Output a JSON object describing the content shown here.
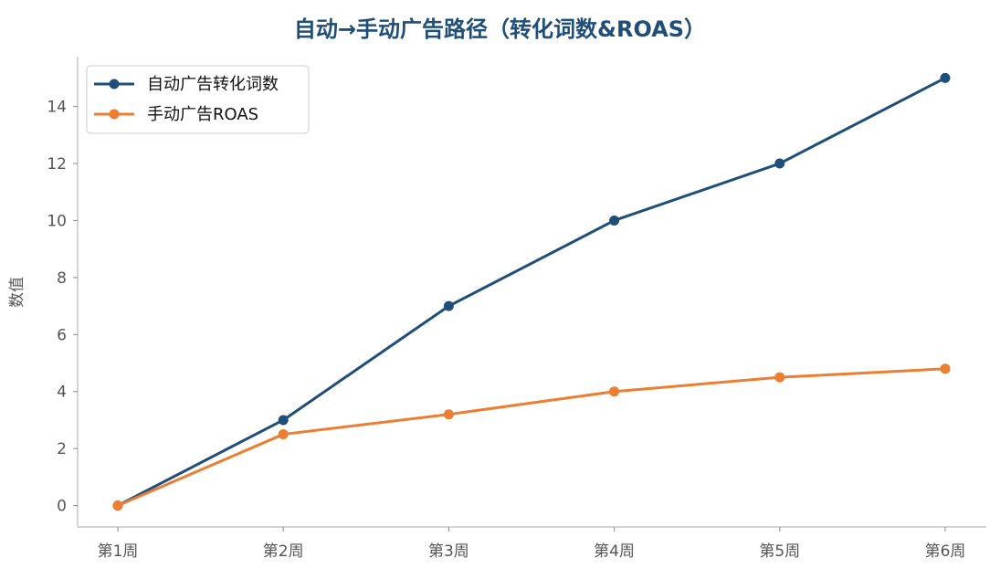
{
  "chart_data": {
    "type": "line",
    "title": "自动→手动广告路径（转化词数&ROAS）",
    "xlabel": "",
    "ylabel": "数值",
    "categories": [
      "第1周",
      "第2周",
      "第3周",
      "第4周",
      "第5周",
      "第6周"
    ],
    "ylim": [
      -0.75,
      15.75
    ],
    "yticks": [
      0,
      2,
      4,
      6,
      8,
      10,
      12,
      14
    ],
    "grid": false,
    "legend_position": "top-left",
    "series": [
      {
        "name": "自动广告转化词数",
        "values": [
          0,
          3,
          7,
          10,
          12,
          15
        ],
        "color": "#1f4e79"
      },
      {
        "name": "手动广告ROAS",
        "values": [
          0,
          2.5,
          3.2,
          4,
          4.5,
          4.8
        ],
        "color": "#ed7d31"
      }
    ]
  }
}
